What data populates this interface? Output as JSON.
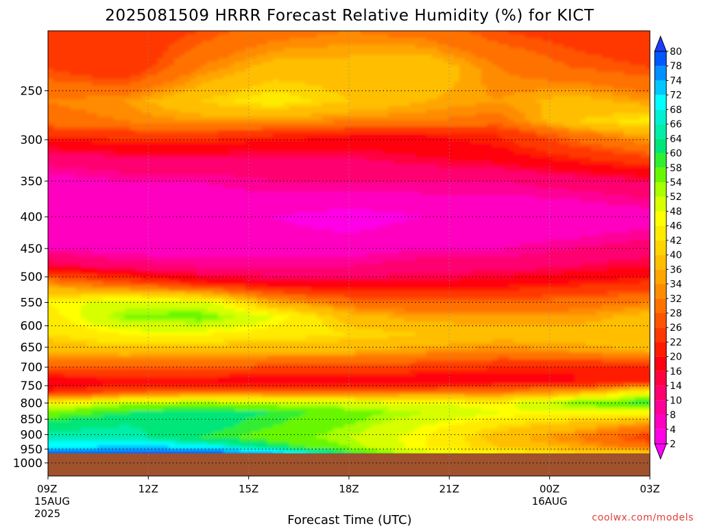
{
  "chart_data": {
    "type": "heatmap",
    "title": "2025081509 HRRR Forecast Relative Humidity (%) for KICT",
    "xlabel": "Forecast Time (UTC)",
    "ylabel": "",
    "credit": "coolwx.com/models",
    "x_ticks": [
      {
        "label": "09Z",
        "sub1": "15AUG",
        "sub2": "2025",
        "hour": 9
      },
      {
        "label": "12Z",
        "sub1": "",
        "sub2": "",
        "hour": 12
      },
      {
        "label": "15Z",
        "sub1": "",
        "sub2": "",
        "hour": 15
      },
      {
        "label": "18Z",
        "sub1": "",
        "sub2": "",
        "hour": 18
      },
      {
        "label": "21Z",
        "sub1": "",
        "sub2": "",
        "hour": 21
      },
      {
        "label": "00Z",
        "sub1": "16AUG",
        "sub2": "",
        "hour": 24
      },
      {
        "label": "03Z",
        "sub1": "",
        "sub2": "",
        "hour": 27
      }
    ],
    "xlim": [
      9,
      27
    ],
    "y_ticks": [
      250,
      300,
      350,
      400,
      450,
      500,
      550,
      600,
      650,
      700,
      750,
      800,
      850,
      900,
      950,
      1000
    ],
    "ylim_hpa": [
      200,
      1050
    ],
    "y_scale": "log",
    "surface_pressure_hpa": 965,
    "grid": "dotted",
    "colorbar": {
      "levels": [
        2,
        4,
        8,
        10,
        14,
        16,
        20,
        22,
        26,
        28,
        32,
        34,
        36,
        40,
        42,
        46,
        48,
        52,
        54,
        58,
        60,
        64,
        66,
        68,
        72,
        74,
        78,
        80
      ],
      "colors": [
        "#ff00ff",
        "#ff00e6",
        "#ff00c0",
        "#ff0096",
        "#ff0070",
        "#ff0040",
        "#ff0010",
        "#ff1a00",
        "#ff3800",
        "#ff5500",
        "#ff7200",
        "#ff8c00",
        "#ffa500",
        "#ffbe00",
        "#ffd500",
        "#ffeb00",
        "#ffff00",
        "#d8ff00",
        "#a8ff00",
        "#68f700",
        "#30ee30",
        "#00e678",
        "#00eea8",
        "#00f0d4",
        "#00ffff",
        "#00c8ff",
        "#0090ff",
        "#0058ff",
        "#1e3cff"
      ]
    },
    "profile": [
      {
        "p": 200,
        "v": [
          24,
          22,
          26,
          30,
          32,
          30,
          26,
          24,
          22
        ]
      },
      {
        "p": 230,
        "v": [
          26,
          22,
          32,
          38,
          38,
          40,
          32,
          28,
          26
        ]
      },
      {
        "p": 260,
        "v": [
          32,
          34,
          40,
          44,
          40,
          36,
          34,
          38,
          34
        ]
      },
      {
        "p": 280,
        "v": [
          30,
          32,
          34,
          34,
          32,
          32,
          30,
          40,
          44
        ]
      },
      {
        "p": 295,
        "v": [
          22,
          24,
          24,
          22,
          20,
          20,
          22,
          30,
          36
        ]
      },
      {
        "p": 320,
        "v": [
          12,
          14,
          14,
          14,
          14,
          16,
          18,
          22,
          26
        ]
      },
      {
        "p": 350,
        "v": [
          6,
          8,
          8,
          10,
          10,
          10,
          10,
          12,
          14
        ]
      },
      {
        "p": 400,
        "v": [
          4,
          4,
          4,
          4,
          2,
          4,
          4,
          4,
          6
        ]
      },
      {
        "p": 450,
        "v": [
          8,
          6,
          6,
          6,
          6,
          8,
          8,
          10,
          12
        ]
      },
      {
        "p": 480,
        "v": [
          16,
          12,
          10,
          10,
          10,
          12,
          12,
          14,
          16
        ]
      },
      {
        "p": 510,
        "v": [
          32,
          26,
          20,
          16,
          16,
          16,
          18,
          20,
          22
        ]
      },
      {
        "p": 550,
        "v": [
          46,
          50,
          50,
          36,
          30,
          28,
          28,
          30,
          32
        ]
      },
      {
        "p": 580,
        "v": [
          44,
          54,
          56,
          48,
          38,
          34,
          34,
          34,
          38
        ]
      },
      {
        "p": 620,
        "v": [
          42,
          46,
          46,
          44,
          42,
          40,
          38,
          38,
          40
        ]
      },
      {
        "p": 660,
        "v": [
          36,
          38,
          36,
          36,
          36,
          34,
          32,
          34,
          36
        ]
      },
      {
        "p": 700,
        "v": [
          28,
          28,
          28,
          26,
          26,
          24,
          22,
          20,
          22
        ]
      },
      {
        "p": 740,
        "v": [
          16,
          18,
          18,
          16,
          16,
          16,
          18,
          20,
          22
        ]
      },
      {
        "p": 770,
        "v": [
          22,
          28,
          30,
          30,
          30,
          32,
          32,
          36,
          48
        ]
      },
      {
        "p": 800,
        "v": [
          46,
          52,
          54,
          52,
          50,
          48,
          46,
          56,
          60
        ]
      },
      {
        "p": 830,
        "v": [
          56,
          60,
          62,
          60,
          56,
          52,
          48,
          46,
          46
        ]
      },
      {
        "p": 870,
        "v": [
          62,
          64,
          62,
          58,
          54,
          48,
          42,
          38,
          32
        ]
      },
      {
        "p": 910,
        "v": [
          66,
          66,
          60,
          56,
          52,
          46,
          38,
          32,
          24
        ]
      },
      {
        "p": 945,
        "v": [
          70,
          74,
          72,
          62,
          54,
          46,
          40,
          36,
          30
        ]
      },
      {
        "p": 962,
        "v": [
          78,
          80,
          80,
          74,
          60,
          50,
          46,
          42,
          40
        ]
      }
    ]
  }
}
